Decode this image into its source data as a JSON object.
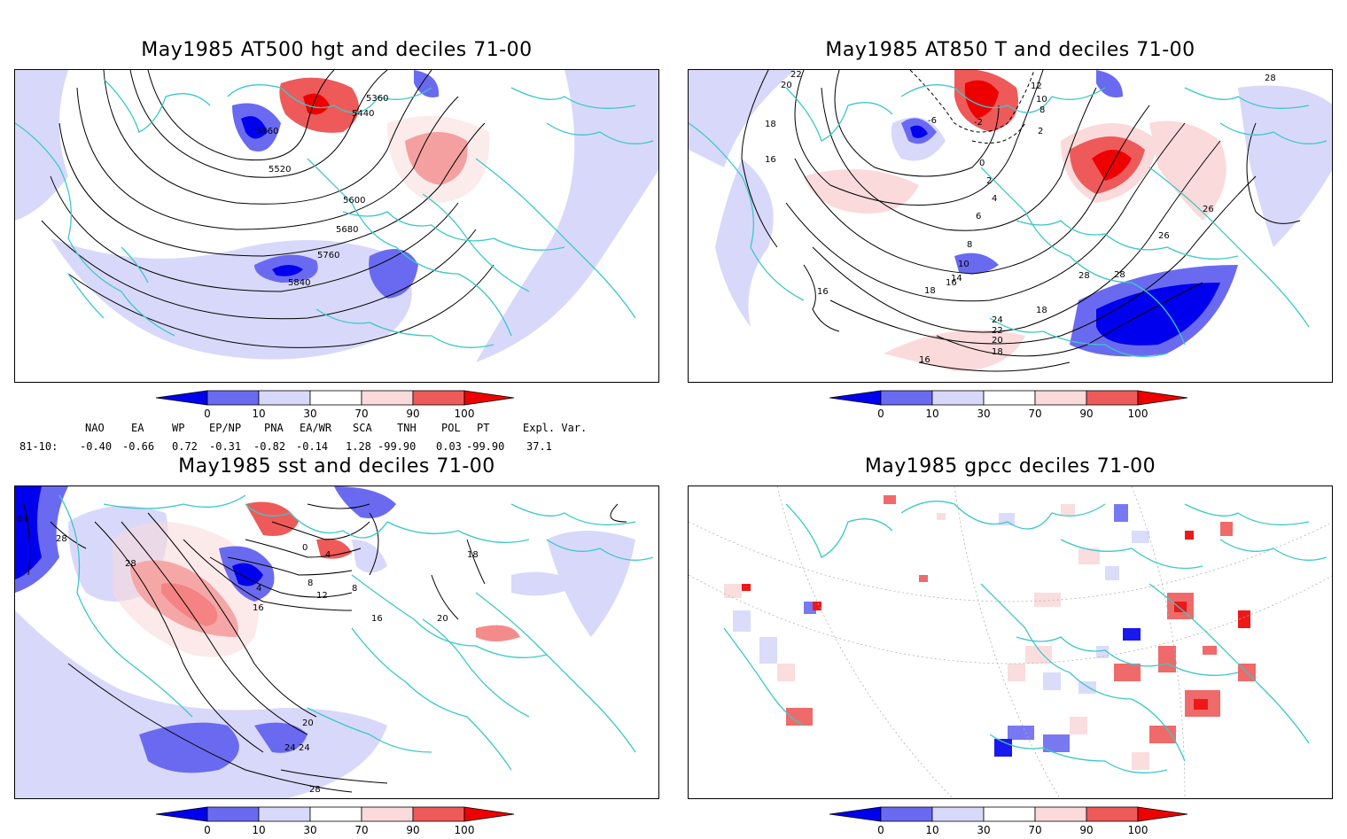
{
  "panels": [
    {
      "title": "May1985 AT500 hgt and deciles 71-00",
      "contour_labels": [
        "5360",
        "5440",
        "5360",
        "5520",
        "5600",
        "5680",
        "5760",
        "5840"
      ]
    },
    {
      "title": "May1985 AT850 T and deciles 71-00",
      "contour_labels": [
        "22",
        "20",
        "18",
        "16",
        "16",
        "12",
        "10",
        "-6",
        "-2",
        "8",
        "2",
        "0",
        "2",
        "4",
        "6",
        "8",
        "10",
        "14",
        "16",
        "18",
        "26",
        "26",
        "28",
        "28",
        "24",
        "22",
        "20",
        "18",
        "16",
        "18",
        "28"
      ]
    },
    {
      "title": "May1985 sst and deciles 71-00",
      "contour_labels": [
        "28",
        "28",
        "24",
        "20",
        "16",
        "12",
        "8",
        "4",
        "0",
        "4",
        "8",
        "16",
        "20",
        "24",
        "28",
        "18",
        "04"
      ]
    },
    {
      "title": "May1985 gpcc deciles 71-00",
      "contour_labels": []
    }
  ],
  "colorbar": {
    "ticks": [
      "0",
      "10",
      "30",
      "70",
      "90",
      "100"
    ],
    "colors": [
      "#0000ee",
      "#6a6af0",
      "#d8d8fa",
      "#ffffff",
      "#fadadb",
      "#ee5a5a",
      "#ee0000"
    ]
  },
  "indices": {
    "headers": [
      "NAO",
      "EA",
      "WP",
      "EP/NP",
      "PNA",
      "EA/WR",
      "SCA",
      "TNH",
      "POL",
      "PT",
      "Expl. Var."
    ],
    "row_label": "81-10:",
    "values": [
      "-0.40",
      "-0.66",
      "0.72",
      "-0.31",
      "-0.82",
      "-0.14",
      "1.28",
      "-99.90",
      "0.03",
      "-99.90",
      "37.1"
    ]
  }
}
